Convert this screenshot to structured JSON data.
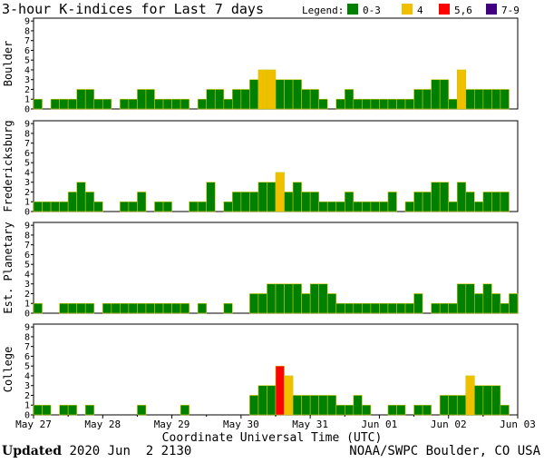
{
  "chart_data": {
    "type": "bar",
    "title": "3-hour K-indices for Last 7 days",
    "legend": {
      "title": "Legend:",
      "placement": "top-right",
      "items": [
        {
          "label": "0-3",
          "color": "#008000"
        },
        {
          "label": "4",
          "color": "#f0c000"
        },
        {
          "label": "5,6",
          "color": "#ff0000"
        },
        {
          "label": "7-9",
          "color": "#400080"
        }
      ]
    },
    "ylim": [
      0,
      9
    ],
    "yticks": [
      "0",
      "1",
      "2",
      "3",
      "4",
      "5",
      "6",
      "7",
      "8",
      "9"
    ],
    "x_tick_labels": [
      "May 27",
      "May 28",
      "May 29",
      "May 30",
      "May 31",
      "Jun 01",
      "Jun 02",
      "Jun 03"
    ],
    "xlabel": "Coordinate Universal Time (UTC)",
    "grid": false,
    "series": [
      {
        "name": "Boulder",
        "values": [
          1,
          0,
          1,
          1,
          1,
          2,
          2,
          1,
          1,
          0,
          1,
          1,
          2,
          2,
          1,
          1,
          1,
          1,
          0,
          1,
          2,
          2,
          1,
          2,
          2,
          3,
          4,
          4,
          3,
          3,
          3,
          2,
          2,
          1,
          0,
          1,
          2,
          1,
          1,
          1,
          1,
          1,
          1,
          1,
          2,
          2,
          3,
          3,
          1,
          4,
          2,
          2,
          2,
          2,
          2,
          0
        ]
      },
      {
        "name": "Fredericksburg",
        "values": [
          1,
          1,
          1,
          1,
          2,
          3,
          2,
          1,
          0,
          0,
          1,
          1,
          2,
          0,
          1,
          1,
          0,
          0,
          1,
          1,
          3,
          0,
          1,
          2,
          2,
          2,
          3,
          3,
          4,
          2,
          3,
          2,
          2,
          1,
          1,
          1,
          2,
          1,
          1,
          1,
          1,
          2,
          0,
          1,
          2,
          2,
          3,
          3,
          1,
          3,
          2,
          1,
          2,
          2,
          2,
          0
        ]
      },
      {
        "name": "Est. Planetary",
        "values": [
          1,
          0,
          0,
          1,
          1,
          1,
          1,
          0,
          1,
          1,
          1,
          1,
          1,
          1,
          1,
          1,
          1,
          1,
          0,
          1,
          0,
          0,
          1,
          0,
          0,
          2,
          2,
          3,
          3,
          3,
          3,
          2,
          3,
          3,
          2,
          1,
          1,
          1,
          1,
          1,
          1,
          1,
          1,
          1,
          2,
          0,
          1,
          1,
          1,
          3,
          3,
          2,
          3,
          2,
          1,
          2,
          1,
          2
        ]
      },
      {
        "name": "College",
        "values": [
          1,
          1,
          0,
          1,
          1,
          0,
          1,
          0,
          0,
          0,
          0,
          0,
          1,
          0,
          0,
          0,
          0,
          1,
          0,
          0,
          0,
          0,
          0,
          0,
          0,
          2,
          3,
          3,
          5,
          4,
          2,
          2,
          2,
          2,
          2,
          1,
          1,
          2,
          1,
          0,
          0,
          1,
          1,
          0,
          1,
          1,
          0,
          2,
          2,
          2,
          4,
          3,
          3,
          3,
          1,
          0
        ]
      }
    ]
  },
  "footer": {
    "updated_label": "Updated",
    "updated_value": " 2020 Jun  2 2130",
    "source": "NOAA/SWPC Boulder, CO USA"
  }
}
